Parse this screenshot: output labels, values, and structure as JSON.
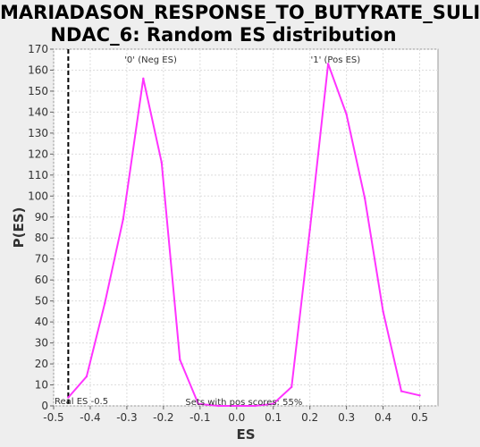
{
  "title_line1": "MARIADASON_RESPONSE_TO_BUTYRATE_SULI",
  "title_line2": "NDAC_6: Random ES distribution",
  "chart_data": {
    "type": "line",
    "title": "MARIADASON_RESPONSE_TO_BUTYRATE_SULINDAC_6: Random ES distribution",
    "xlabel": "ES",
    "ylabel": "P(ES)",
    "xlim": [
      -0.5,
      0.55
    ],
    "ylim": [
      0,
      170
    ],
    "xticks": [
      "-0.5",
      "-0.4",
      "-0.3",
      "-0.2",
      "-0.1",
      "0.0",
      "0.1",
      "0.2",
      "0.3",
      "0.4",
      "0.5"
    ],
    "yticks": [
      "0",
      "10",
      "20",
      "30",
      "40",
      "50",
      "60",
      "70",
      "80",
      "90",
      "100",
      "110",
      "120",
      "130",
      "140",
      "150",
      "160",
      "170"
    ],
    "grid": true,
    "line_color": "#ff33ff",
    "series": [
      {
        "x": [
          -0.46,
          -0.41,
          -0.36,
          -0.31,
          -0.255,
          -0.205,
          -0.155,
          -0.105,
          -0.05,
          0.0,
          0.05,
          0.1,
          0.15,
          0.2,
          0.25,
          0.3,
          0.35,
          0.4,
          0.45,
          0.5
        ],
        "y": [
          4,
          14,
          49,
          89,
          156,
          116,
          22,
          1,
          0,
          0,
          0,
          1,
          9,
          84,
          163,
          139,
          99,
          45,
          7,
          5
        ]
      }
    ],
    "real_es_x": -0.46,
    "real_es_label": "Real ES -0.5",
    "neg_label": "'0' (Neg ES)",
    "neg_label_color": "#3333ff",
    "pos_label": "'1' (Pos ES)",
    "pos_label_color": "#ff0000",
    "pos_scores_text": "Sets with pos scores: 55%"
  }
}
